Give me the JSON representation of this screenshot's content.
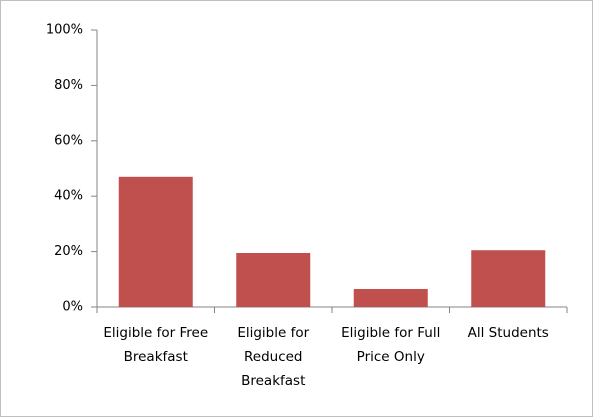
{
  "chart_data": {
    "type": "bar",
    "categories": [
      "Eligible for Free Breakfast",
      "Eligible for Reduced Breakfast",
      "Eligible for Full Price Only",
      "All Students"
    ],
    "values": [
      47,
      19.5,
      6.5,
      20.5
    ],
    "color": "#c0504d",
    "ylim": [
      0,
      100
    ],
    "yticks": [
      {
        "value": 0,
        "label": "0%"
      },
      {
        "value": 20,
        "label": "20%"
      },
      {
        "value": 40,
        "label": "40%"
      },
      {
        "value": 60,
        "label": "60%"
      },
      {
        "value": 80,
        "label": "80%"
      },
      {
        "value": 100,
        "label": "100%"
      }
    ],
    "grid": false
  }
}
